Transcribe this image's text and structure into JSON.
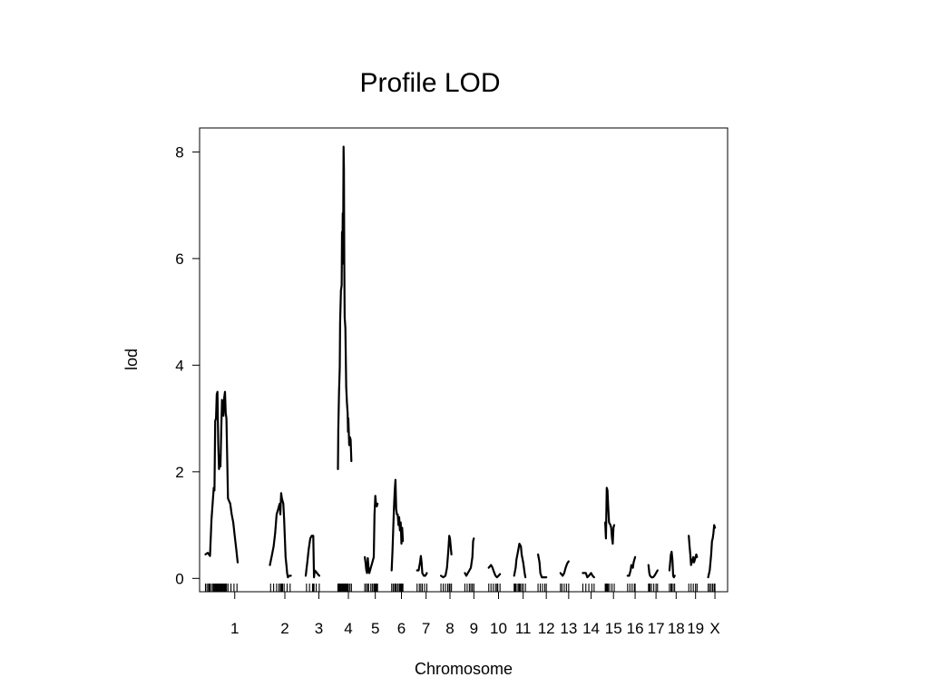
{
  "chart_data": {
    "type": "line",
    "title": "Profile LOD",
    "xlabel": "Chromosome",
    "ylabel": "lod",
    "ylim": [
      -0.25,
      8.45
    ],
    "yticks": [
      0,
      2,
      4,
      6,
      8
    ],
    "grid": false,
    "line_color": "#000000",
    "chromosomes": [
      {
        "name": "1",
        "length": 78,
        "points": [
          [
            0,
            0.45
          ],
          [
            3,
            0.48
          ],
          [
            6,
            0.42
          ],
          [
            8,
            1.1
          ],
          [
            11,
            1.7
          ],
          [
            12,
            1.65
          ],
          [
            13,
            2.95
          ],
          [
            14,
            3.0
          ],
          [
            15,
            3.45
          ],
          [
            16,
            3.5
          ],
          [
            17,
            2.5
          ],
          [
            18,
            2.05
          ],
          [
            19,
            2.3
          ],
          [
            20,
            2.1
          ],
          [
            21,
            2.8
          ],
          [
            22,
            3.35
          ],
          [
            23,
            3.2
          ],
          [
            24,
            3.05
          ],
          [
            25,
            3.4
          ],
          [
            26,
            3.5
          ],
          [
            27,
            3.1
          ],
          [
            28,
            3.0
          ],
          [
            29,
            2.2
          ],
          [
            30,
            1.5
          ],
          [
            33,
            1.4
          ],
          [
            35,
            1.2
          ],
          [
            37,
            1.05
          ],
          [
            39,
            0.8
          ],
          [
            41,
            0.55
          ],
          [
            43,
            0.3
          ]
        ]
      },
      {
        "name": "2",
        "length": 40,
        "points": [
          [
            0,
            0.25
          ],
          [
            3,
            0.45
          ],
          [
            5,
            0.6
          ],
          [
            7,
            0.85
          ],
          [
            9,
            1.2
          ],
          [
            11,
            1.3
          ],
          [
            13,
            1.4
          ],
          [
            14,
            1.2
          ],
          [
            15,
            1.6
          ],
          [
            16,
            1.5
          ],
          [
            18,
            1.4
          ],
          [
            19,
            1.1
          ],
          [
            20,
            0.75
          ],
          [
            21,
            0.4
          ],
          [
            22,
            0.25
          ],
          [
            23,
            0.1
          ],
          [
            24,
            0.02
          ],
          [
            26,
            0.05
          ],
          [
            28,
            0.05
          ]
        ]
      },
      {
        "name": "3",
        "length": 35,
        "points": [
          [
            0,
            0.05
          ],
          [
            2,
            0.3
          ],
          [
            4,
            0.55
          ],
          [
            6,
            0.75
          ],
          [
            8,
            0.8
          ],
          [
            10,
            0.8
          ],
          [
            11,
            0.02
          ],
          [
            12,
            0.15
          ],
          [
            14,
            0.12
          ],
          [
            16,
            0.08
          ],
          [
            18,
            0.05
          ]
        ]
      },
      {
        "name": "4",
        "length": 28,
        "points": [
          [
            0,
            2.05
          ],
          [
            0.5,
            2.8
          ],
          [
            1.5,
            3.5
          ],
          [
            2.5,
            3.95
          ],
          [
            3,
            4.8
          ],
          [
            4,
            5.4
          ],
          [
            5,
            5.5
          ],
          [
            5.5,
            6.5
          ],
          [
            6,
            5.9
          ],
          [
            6.5,
            6.85
          ],
          [
            7,
            6.2
          ],
          [
            7.5,
            8.1
          ],
          [
            8,
            7.7
          ],
          [
            8.5,
            5.9
          ],
          [
            9,
            4.9
          ],
          [
            10,
            4.7
          ],
          [
            11,
            3.6
          ],
          [
            12,
            3.3
          ],
          [
            13,
            3.1
          ],
          [
            13.5,
            2.75
          ],
          [
            14,
            3.0
          ],
          [
            15,
            2.5
          ],
          [
            16,
            2.65
          ],
          [
            17,
            2.6
          ],
          [
            18,
            2.2
          ]
        ]
      },
      {
        "name": "5",
        "length": 28,
        "points": [
          [
            0,
            0.4
          ],
          [
            1,
            0.3
          ],
          [
            2,
            0.15
          ],
          [
            3,
            0.1
          ],
          [
            4,
            0.38
          ],
          [
            5,
            0.2
          ],
          [
            6,
            0.1
          ],
          [
            8,
            0.2
          ],
          [
            10,
            0.3
          ],
          [
            12,
            0.4
          ],
          [
            13,
            1.2
          ],
          [
            14,
            1.55
          ],
          [
            15,
            1.4
          ],
          [
            16,
            1.35
          ],
          [
            17,
            1.4
          ]
        ]
      },
      {
        "name": "6",
        "length": 26,
        "points": [
          [
            0,
            0.15
          ],
          [
            1,
            0.5
          ],
          [
            2,
            0.9
          ],
          [
            3,
            1.3
          ],
          [
            4,
            1.65
          ],
          [
            5,
            1.85
          ],
          [
            6,
            1.3
          ],
          [
            7,
            1.2
          ],
          [
            8,
            1.2
          ],
          [
            9,
            1.0
          ],
          [
            10,
            1.15
          ],
          [
            11,
            0.9
          ],
          [
            12,
            1.05
          ],
          [
            13,
            0.65
          ],
          [
            14,
            0.95
          ],
          [
            15,
            0.7
          ]
        ]
      },
      {
        "name": "7",
        "length": 24,
        "points": [
          [
            0,
            0.15
          ],
          [
            2,
            0.15
          ],
          [
            4,
            0.3
          ],
          [
            5,
            0.42
          ],
          [
            6,
            0.3
          ],
          [
            7,
            0.1
          ],
          [
            9,
            0.05
          ],
          [
            11,
            0.05
          ],
          [
            13,
            0.1
          ]
        ]
      },
      {
        "name": "8",
        "length": 24,
        "points": [
          [
            0,
            0.05
          ],
          [
            3,
            0.02
          ],
          [
            6,
            0.05
          ],
          [
            8,
            0.2
          ],
          [
            10,
            0.55
          ],
          [
            11,
            0.8
          ],
          [
            12,
            0.75
          ],
          [
            13,
            0.6
          ],
          [
            14,
            0.45
          ]
        ]
      },
      {
        "name": "9",
        "length": 24,
        "points": [
          [
            0,
            0.1
          ],
          [
            2,
            0.05
          ],
          [
            4,
            0.1
          ],
          [
            6,
            0.15
          ],
          [
            8,
            0.2
          ],
          [
            10,
            0.4
          ],
          [
            11,
            0.7
          ],
          [
            12,
            0.75
          ]
        ]
      },
      {
        "name": "10",
        "length": 26,
        "points": [
          [
            0,
            0.2
          ],
          [
            3,
            0.25
          ],
          [
            5,
            0.2
          ],
          [
            7,
            0.12
          ],
          [
            9,
            0.05
          ],
          [
            11,
            0.02
          ],
          [
            13,
            0.05
          ],
          [
            15,
            0.08
          ]
        ]
      },
      {
        "name": "11",
        "length": 24,
        "points": [
          [
            0,
            0.05
          ],
          [
            2,
            0.2
          ],
          [
            3,
            0.35
          ],
          [
            5,
            0.5
          ],
          [
            7,
            0.65
          ],
          [
            9,
            0.6
          ],
          [
            10,
            0.45
          ],
          [
            12,
            0.3
          ],
          [
            14,
            0.1
          ],
          [
            15,
            0.02
          ]
        ]
      },
      {
        "name": "12",
        "length": 22,
        "points": [
          [
            0,
            0.45
          ],
          [
            2,
            0.3
          ],
          [
            3,
            0.1
          ],
          [
            5,
            0.02
          ],
          [
            8,
            0.02
          ],
          [
            11,
            0.02
          ]
        ]
      },
      {
        "name": "13",
        "length": 22,
        "points": [
          [
            0,
            0.1
          ],
          [
            3,
            0.05
          ],
          [
            5,
            0.1
          ],
          [
            7,
            0.2
          ],
          [
            9,
            0.28
          ],
          [
            11,
            0.32
          ]
        ]
      },
      {
        "name": "14",
        "length": 22,
        "points": [
          [
            0,
            0.1
          ],
          [
            4,
            0.1
          ],
          [
            6,
            0.02
          ],
          [
            8,
            0.05
          ],
          [
            11,
            0.1
          ],
          [
            13,
            0.05
          ],
          [
            15,
            0.02
          ]
        ]
      },
      {
        "name": "15",
        "length": 22,
        "points": [
          [
            0,
            1.05
          ],
          [
            1,
            0.75
          ],
          [
            2,
            1.7
          ],
          [
            3,
            1.65
          ],
          [
            4,
            1.35
          ],
          [
            5,
            1.05
          ],
          [
            7,
            1.0
          ],
          [
            8,
            0.95
          ],
          [
            9,
            0.75
          ],
          [
            10,
            0.65
          ],
          [
            11,
            0.95
          ],
          [
            12,
            1.0
          ]
        ]
      },
      {
        "name": "16",
        "length": 20,
        "points": [
          [
            0,
            0.05
          ],
          [
            2,
            0.05
          ],
          [
            4,
            0.15
          ],
          [
            5,
            0.25
          ],
          [
            7,
            0.2
          ],
          [
            8,
            0.3
          ],
          [
            9,
            0.35
          ],
          [
            10,
            0.4
          ]
        ]
      },
      {
        "name": "17",
        "length": 20,
        "points": [
          [
            0,
            0.25
          ],
          [
            1,
            0.1
          ],
          [
            2,
            0.05
          ],
          [
            4,
            0.02
          ],
          [
            6,
            0.02
          ],
          [
            8,
            0.05
          ],
          [
            10,
            0.1
          ],
          [
            12,
            0.15
          ]
        ]
      },
      {
        "name": "18",
        "length": 18,
        "points": [
          [
            0,
            0.15
          ],
          [
            1,
            0.3
          ],
          [
            2,
            0.45
          ],
          [
            3,
            0.5
          ],
          [
            4,
            0.35
          ],
          [
            5,
            0.05
          ],
          [
            6,
            0.02
          ],
          [
            7,
            0.05
          ]
        ]
      },
      {
        "name": "19",
        "length": 18,
        "points": [
          [
            0,
            0.8
          ],
          [
            1,
            0.6
          ],
          [
            2,
            0.45
          ],
          [
            3,
            0.25
          ],
          [
            4,
            0.3
          ],
          [
            5,
            0.35
          ],
          [
            6,
            0.4
          ],
          [
            7,
            0.3
          ],
          [
            8,
            0.35
          ],
          [
            9,
            0.4
          ],
          [
            10,
            0.45
          ],
          [
            11,
            0.4
          ]
        ]
      },
      {
        "name": "X",
        "length": 18,
        "points": [
          [
            0,
            0.02
          ],
          [
            2,
            0.15
          ],
          [
            3,
            0.3
          ],
          [
            4,
            0.45
          ],
          [
            5,
            0.7
          ],
          [
            6,
            0.75
          ],
          [
            7,
            0.85
          ],
          [
            8,
            1.0
          ],
          [
            9,
            0.95
          ]
        ]
      }
    ],
    "markers": [
      {
        "chr": "1",
        "pos": [
          0,
          2,
          4,
          5,
          6,
          8,
          10,
          11,
          12,
          13,
          14,
          15,
          16,
          17,
          18,
          19,
          20,
          21,
          22,
          23,
          24,
          25,
          26,
          27,
          28,
          30,
          34,
          38,
          42
        ]
      },
      {
        "chr": "2",
        "pos": [
          1,
          5,
          9,
          12,
          14,
          15,
          16,
          17,
          19,
          23,
          27
        ]
      },
      {
        "chr": "3",
        "pos": [
          1,
          5,
          9,
          10,
          11,
          14,
          18
        ]
      },
      {
        "chr": "4",
        "pos": [
          0,
          1,
          2,
          3,
          4,
          5,
          5.5,
          6,
          6.5,
          7,
          7.5,
          8,
          8.5,
          9,
          10,
          11,
          12,
          13,
          14,
          16,
          18
        ]
      },
      {
        "chr": "5",
        "pos": [
          0,
          2,
          4,
          5,
          8,
          10,
          12,
          13,
          14,
          15,
          16,
          17
        ]
      },
      {
        "chr": "6",
        "pos": [
          0,
          2,
          4,
          5,
          6,
          8,
          10,
          11,
          12,
          13,
          14,
          15
        ]
      },
      {
        "chr": "7",
        "pos": [
          0,
          3,
          5,
          7,
          10,
          13
        ]
      },
      {
        "chr": "8",
        "pos": [
          0,
          3,
          6,
          9,
          11,
          12,
          14
        ]
      },
      {
        "chr": "9",
        "pos": [
          0,
          3,
          6,
          8,
          10,
          12
        ]
      },
      {
        "chr": "10",
        "pos": [
          0,
          3,
          6,
          9,
          11,
          12,
          15
        ]
      },
      {
        "chr": "11",
        "pos": [
          0,
          1,
          2,
          4,
          6,
          7,
          8,
          10,
          12,
          15
        ]
      },
      {
        "chr": "12",
        "pos": [
          0,
          3,
          6,
          9,
          11
        ]
      },
      {
        "chr": "13",
        "pos": [
          0,
          2,
          5,
          8,
          11
        ]
      },
      {
        "chr": "14",
        "pos": [
          0,
          4,
          8,
          12,
          15
        ]
      },
      {
        "chr": "15",
        "pos": [
          0,
          1,
          2,
          3,
          4,
          6,
          9,
          12
        ]
      },
      {
        "chr": "16",
        "pos": [
          0,
          3,
          6,
          9,
          10
        ]
      },
      {
        "chr": "17",
        "pos": [
          0,
          1,
          2,
          4,
          7,
          10,
          12
        ]
      },
      {
        "chr": "18",
        "pos": [
          0,
          2,
          3,
          5,
          7
        ]
      },
      {
        "chr": "19",
        "pos": [
          0,
          3,
          6,
          9,
          11
        ]
      },
      {
        "chr": "X",
        "pos": [
          0,
          2,
          4,
          6,
          8,
          9
        ]
      }
    ]
  }
}
